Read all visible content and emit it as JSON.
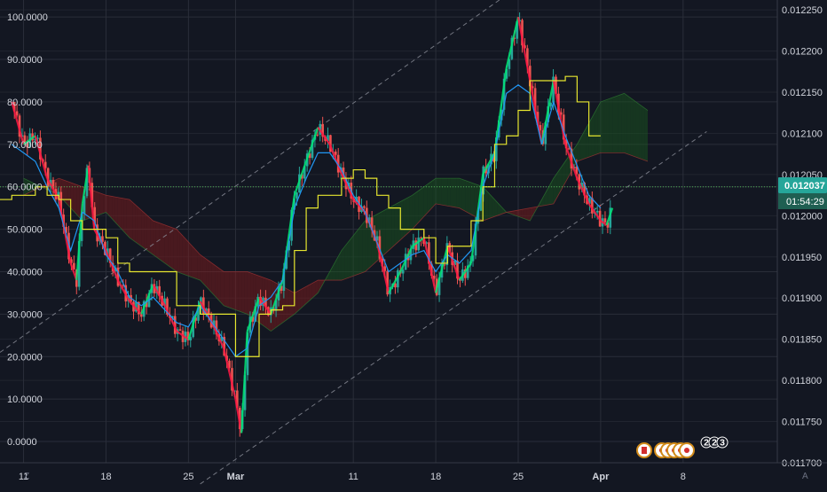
{
  "colors": {
    "background": "#131722",
    "grid": "#2a2e39",
    "candle_up": "#26a69a",
    "candle_down": "#ef5350",
    "ha_up": "#00e676",
    "ha_down": "#ff1744",
    "tenkan": "#2196f3",
    "kijun": "#e6e62f",
    "cloud_bull": "#1b5e20",
    "cloud_bear": "#8b1c1c",
    "price_line": "#4caf50",
    "channel": "#8a8d98"
  },
  "corner_left": "Z",
  "corner_right": "A",
  "chart_data": {
    "type": "line",
    "y_left": {
      "ticks": [
        "100.0000",
        "90.0000",
        "80.0000",
        "70.0000",
        "60.0000",
        "50.0000",
        "40.0000",
        "30.0000",
        "20.0000",
        "10.0000",
        "0.0000"
      ],
      "range": [
        -5,
        104
      ]
    },
    "y_right": {
      "ticks": [
        "0.012250",
        "0.012200",
        "0.012150",
        "0.012100",
        "0.012050",
        "0.012000",
        "0.011950",
        "0.011900",
        "0.011850",
        "0.011800",
        "0.011750",
        "0.011700"
      ],
      "range": [
        0.0117,
        0.012262
      ]
    },
    "x_ticks": [
      {
        "label": "11",
        "day": 11,
        "bold": false
      },
      {
        "label": "18",
        "day": 18,
        "bold": false
      },
      {
        "label": "25",
        "day": 25,
        "bold": false
      },
      {
        "label": "Mar",
        "day": 29,
        "bold": true
      },
      {
        "label": "11",
        "day": 39,
        "bold": false
      },
      {
        "label": "18",
        "day": 46,
        "bold": false
      },
      {
        "label": "25",
        "day": 53,
        "bold": false
      },
      {
        "label": "Apr",
        "day": 60,
        "bold": true
      },
      {
        "label": "8",
        "day": 67,
        "bold": false
      }
    ],
    "x_range": [
      9,
      75
    ],
    "current_price": "0.012037",
    "countdown": "01:54:29",
    "current_oscillator": 60,
    "oscillator": [
      [
        10,
        80
      ],
      [
        11,
        70
      ],
      [
        12,
        72
      ],
      [
        13,
        62
      ],
      [
        14,
        57
      ],
      [
        15,
        42
      ],
      [
        15.5,
        38
      ],
      [
        16,
        56
      ],
      [
        16.5,
        65
      ],
      [
        17,
        50
      ],
      [
        18,
        45
      ],
      [
        19,
        38
      ],
      [
        20,
        33
      ],
      [
        21,
        30
      ],
      [
        22,
        37
      ],
      [
        23,
        32
      ],
      [
        24,
        26
      ],
      [
        25,
        24
      ],
      [
        26,
        33
      ],
      [
        27,
        28
      ],
      [
        28,
        22
      ],
      [
        29,
        10
      ],
      [
        29.5,
        2
      ],
      [
        30,
        26
      ],
      [
        31,
        34
      ],
      [
        32,
        30
      ],
      [
        33,
        38
      ],
      [
        34,
        58
      ],
      [
        35,
        66
      ],
      [
        36,
        74
      ],
      [
        37,
        70
      ],
      [
        38,
        63
      ],
      [
        39,
        57
      ],
      [
        40,
        54
      ],
      [
        41,
        47
      ],
      [
        42,
        35
      ],
      [
        43,
        40
      ],
      [
        44,
        46
      ],
      [
        45,
        48
      ],
      [
        46,
        35
      ],
      [
        47,
        46
      ],
      [
        48,
        38
      ],
      [
        49,
        42
      ],
      [
        50,
        63
      ],
      [
        51,
        68
      ],
      [
        52,
        88
      ],
      [
        53,
        100
      ],
      [
        54,
        85
      ],
      [
        55,
        70
      ],
      [
        56,
        85
      ],
      [
        57,
        70
      ],
      [
        58,
        62
      ],
      [
        59,
        56
      ],
      [
        60,
        52
      ],
      [
        60.5,
        51
      ],
      [
        61,
        55
      ]
    ],
    "tenkan": [
      [
        10,
        70
      ],
      [
        11,
        68
      ],
      [
        12,
        66
      ],
      [
        13,
        60
      ],
      [
        14,
        55
      ],
      [
        15,
        45
      ],
      [
        16,
        54
      ],
      [
        17,
        52
      ],
      [
        18,
        44
      ],
      [
        19,
        40
      ],
      [
        20,
        34
      ],
      [
        21,
        32
      ],
      [
        22,
        34
      ],
      [
        23,
        31
      ],
      [
        24,
        28
      ],
      [
        25,
        27
      ],
      [
        26,
        32
      ],
      [
        27,
        28
      ],
      [
        28,
        24
      ],
      [
        29,
        20
      ],
      [
        30,
        22
      ],
      [
        31,
        32
      ],
      [
        32,
        34
      ],
      [
        33,
        38
      ],
      [
        34,
        55
      ],
      [
        35,
        62
      ],
      [
        36,
        68
      ],
      [
        37,
        68
      ],
      [
        38,
        64
      ],
      [
        39,
        58
      ],
      [
        40,
        54
      ],
      [
        41,
        47
      ],
      [
        42,
        40
      ],
      [
        43,
        42
      ],
      [
        44,
        44
      ],
      [
        45,
        45
      ],
      [
        46,
        40
      ],
      [
        47,
        44
      ],
      [
        48,
        42
      ],
      [
        49,
        45
      ],
      [
        50,
        60
      ],
      [
        51,
        68
      ],
      [
        52,
        82
      ],
      [
        53,
        84
      ],
      [
        54,
        82
      ],
      [
        55,
        70
      ],
      [
        56,
        80
      ],
      [
        57,
        72
      ],
      [
        58,
        65
      ],
      [
        59,
        58
      ],
      [
        60,
        55
      ]
    ],
    "kijun": [
      [
        9,
        57
      ],
      [
        10,
        58
      ],
      [
        11,
        58
      ],
      [
        12,
        60
      ],
      [
        13,
        58
      ],
      [
        14,
        57
      ],
      [
        15,
        52
      ],
      [
        16,
        50
      ],
      [
        17,
        50
      ],
      [
        18,
        48
      ],
      [
        19,
        42
      ],
      [
        20,
        40
      ],
      [
        21,
        40
      ],
      [
        22,
        40
      ],
      [
        23,
        40
      ],
      [
        24,
        32
      ],
      [
        25,
        32
      ],
      [
        26,
        30
      ],
      [
        27,
        30
      ],
      [
        28,
        30
      ],
      [
        29,
        20
      ],
      [
        30,
        20
      ],
      [
        31,
        30
      ],
      [
        32,
        31
      ],
      [
        33,
        32
      ],
      [
        34,
        45
      ],
      [
        35,
        55
      ],
      [
        36,
        58
      ],
      [
        37,
        58
      ],
      [
        38,
        62
      ],
      [
        39,
        64
      ],
      [
        40,
        62
      ],
      [
        41,
        58
      ],
      [
        42,
        55
      ],
      [
        43,
        50
      ],
      [
        44,
        50
      ],
      [
        45,
        48
      ],
      [
        46,
        42
      ],
      [
        47,
        46
      ],
      [
        48,
        46
      ],
      [
        49,
        52
      ],
      [
        50,
        60
      ],
      [
        51,
        70
      ],
      [
        52,
        72
      ],
      [
        53,
        78
      ],
      [
        54,
        85
      ],
      [
        55,
        85
      ],
      [
        56,
        85
      ],
      [
        57,
        86
      ],
      [
        58,
        80
      ],
      [
        59,
        72
      ],
      [
        60,
        72
      ]
    ],
    "cloud_a": [
      [
        11,
        62
      ],
      [
        14,
        58
      ],
      [
        16,
        52
      ],
      [
        18,
        54
      ],
      [
        20,
        48
      ],
      [
        22,
        44
      ],
      [
        24,
        40
      ],
      [
        26,
        38
      ],
      [
        28,
        32
      ],
      [
        30,
        30
      ],
      [
        32,
        26
      ],
      [
        34,
        30
      ],
      [
        36,
        35
      ],
      [
        38,
        45
      ],
      [
        40,
        52
      ],
      [
        42,
        55
      ],
      [
        44,
        58
      ],
      [
        46,
        62
      ],
      [
        48,
        62
      ],
      [
        50,
        60
      ],
      [
        52,
        54
      ],
      [
        54,
        52
      ],
      [
        56,
        62
      ],
      [
        58,
        70
      ],
      [
        60,
        80
      ],
      [
        62,
        82
      ],
      [
        64,
        78
      ]
    ],
    "cloud_b": [
      [
        11,
        58
      ],
      [
        14,
        62
      ],
      [
        16,
        60
      ],
      [
        18,
        58
      ],
      [
        20,
        57
      ],
      [
        22,
        52
      ],
      [
        24,
        50
      ],
      [
        26,
        44
      ],
      [
        28,
        40
      ],
      [
        30,
        40
      ],
      [
        32,
        38
      ],
      [
        34,
        35
      ],
      [
        36,
        38
      ],
      [
        38,
        38
      ],
      [
        40,
        40
      ],
      [
        42,
        45
      ],
      [
        44,
        50
      ],
      [
        46,
        56
      ],
      [
        48,
        55
      ],
      [
        50,
        52
      ],
      [
        52,
        54
      ],
      [
        54,
        55
      ],
      [
        56,
        56
      ],
      [
        58,
        66
      ],
      [
        60,
        68
      ],
      [
        62,
        68
      ],
      [
        64,
        66
      ]
    ],
    "channel_lines": [
      {
        "from": [
          9,
          21
        ],
        "to": [
          56,
          113
        ]
      },
      {
        "from": [
          26,
          -10
        ],
        "to": [
          69,
          73
        ]
      }
    ],
    "badges": [
      "2",
      "2",
      "3"
    ],
    "grid": true,
    "legend": false
  }
}
